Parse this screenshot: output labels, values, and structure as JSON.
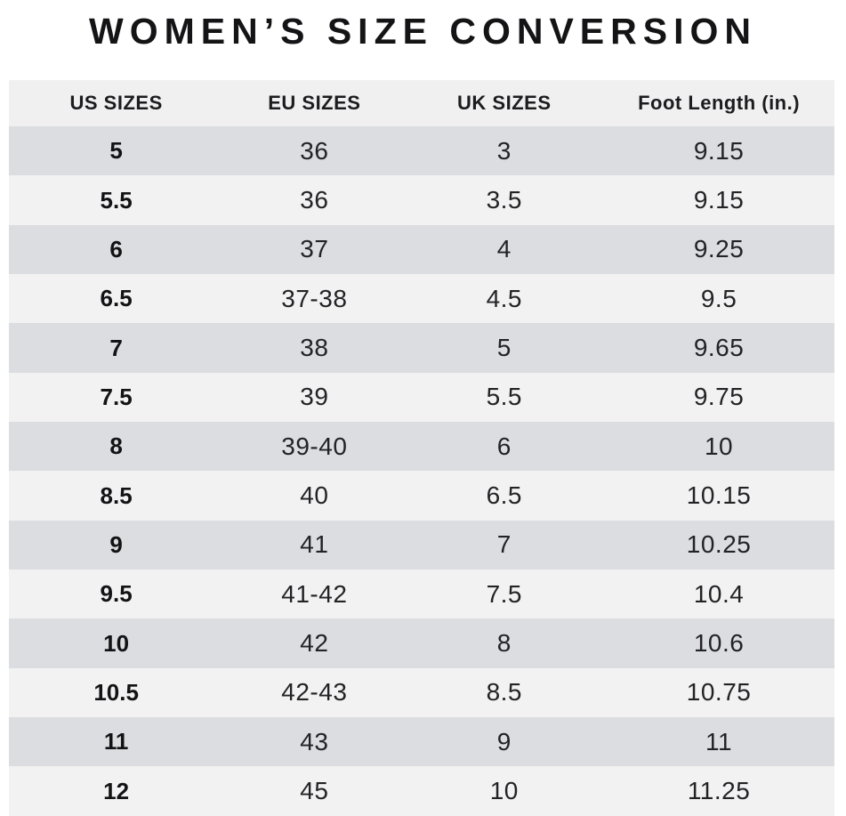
{
  "title": "WOMEN’S SIZE CONVERSION",
  "colors": {
    "page_bg": "#ffffff",
    "row_dark": "#dcdde0",
    "row_light": "#f2f2f3",
    "header_bg": "#f0f0f1",
    "text_dark": "#1c1c1e"
  },
  "chart_data": {
    "type": "table",
    "title": "WOMEN’S SIZE CONVERSION",
    "columns": [
      "US SIZES",
      "EU SIZES",
      "UK SIZES",
      "Foot Length (in.)"
    ],
    "rows": [
      [
        "5",
        "36",
        "3",
        "9.15"
      ],
      [
        "5.5",
        "36",
        "3.5",
        "9.15"
      ],
      [
        "6",
        "37",
        "4",
        "9.25"
      ],
      [
        "6.5",
        "37-38",
        "4.5",
        "9.5"
      ],
      [
        "7",
        "38",
        "5",
        "9.65"
      ],
      [
        "7.5",
        "39",
        "5.5",
        "9.75"
      ],
      [
        "8",
        "39-40",
        "6",
        "10"
      ],
      [
        "8.5",
        "40",
        "6.5",
        "10.15"
      ],
      [
        "9",
        "41",
        "7",
        "10.25"
      ],
      [
        "9.5",
        "41-42",
        "7.5",
        "10.4"
      ],
      [
        "10",
        "42",
        "8",
        "10.6"
      ],
      [
        "10.5",
        "42-43",
        "8.5",
        "10.75"
      ],
      [
        "11",
        "43",
        "9",
        "11"
      ],
      [
        "12",
        "45",
        "10",
        "11.25"
      ]
    ],
    "layout": {
      "row_striping": "odd rows dark gray, even rows light gray",
      "first_column_bold": true
    }
  }
}
